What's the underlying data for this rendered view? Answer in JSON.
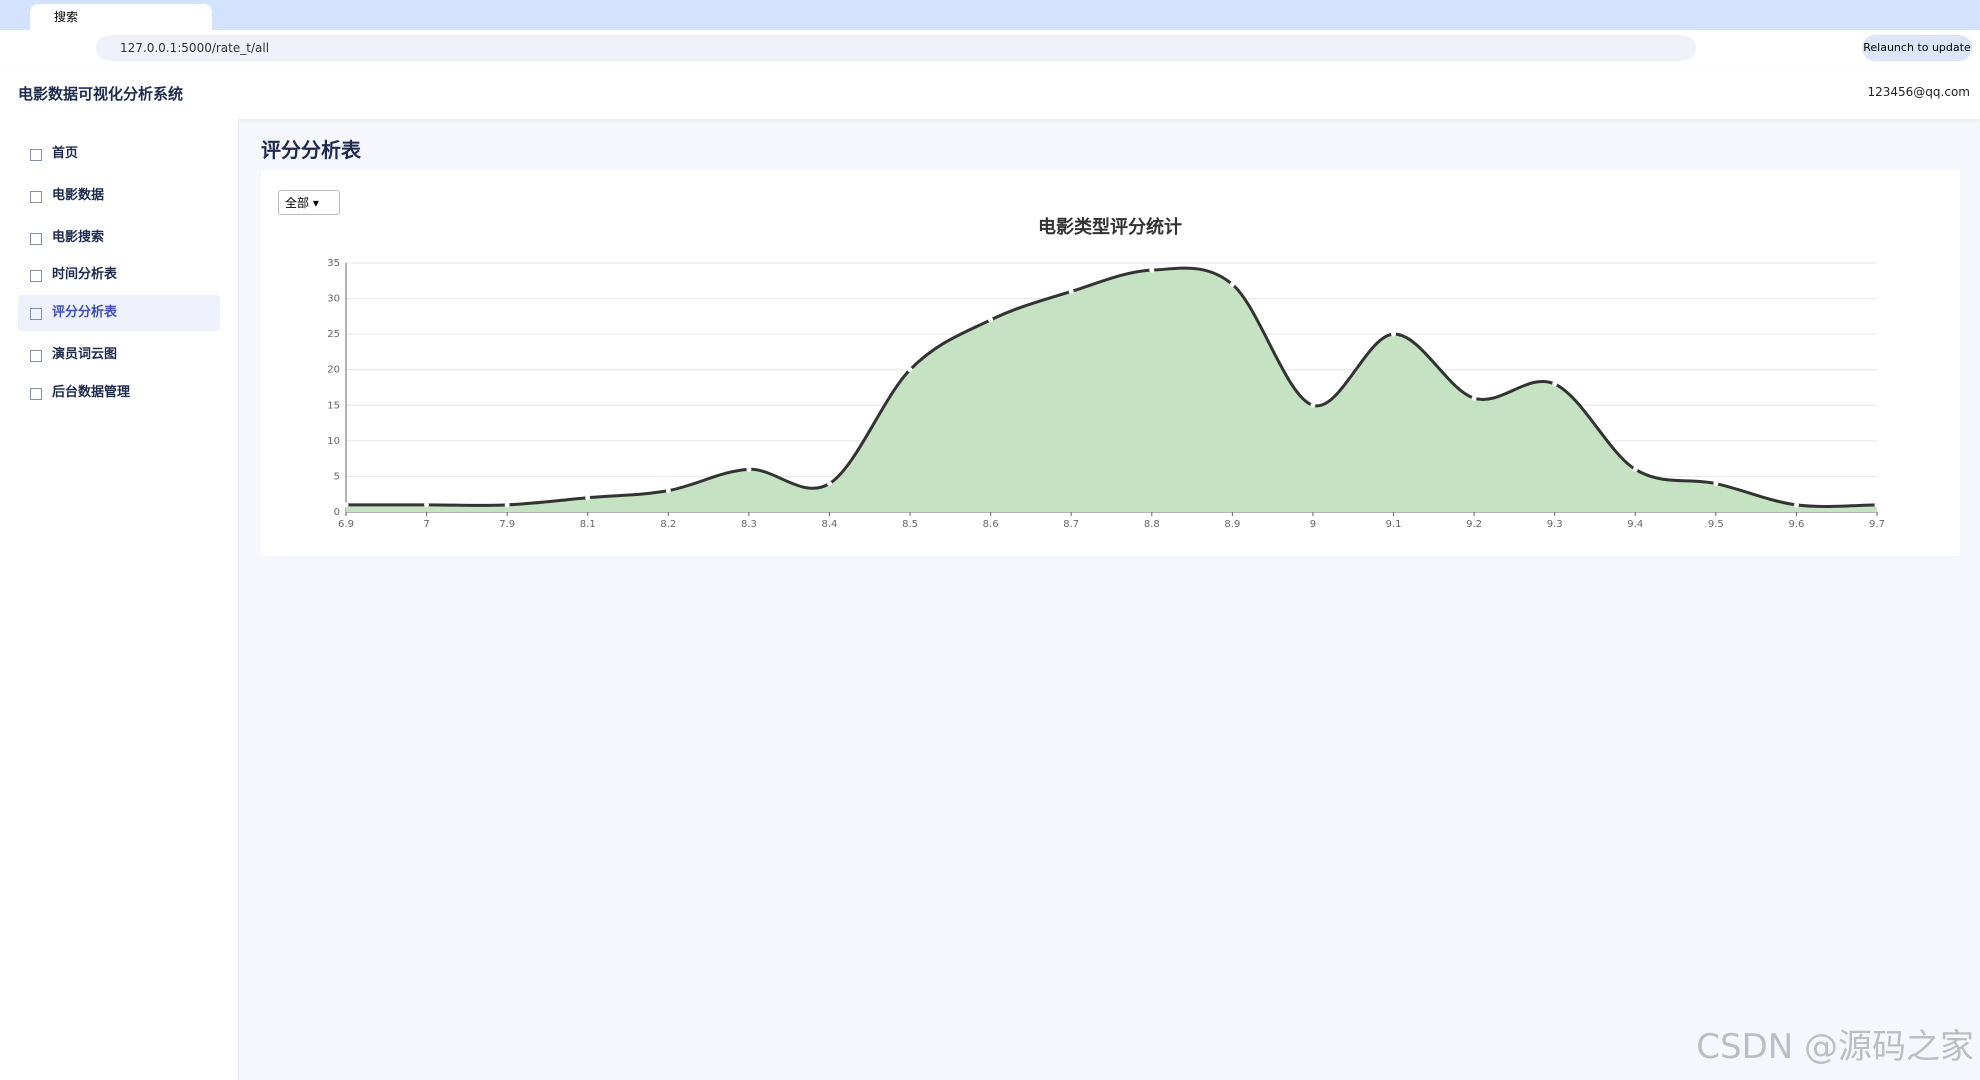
{
  "browser": {
    "tab_title": "搜索",
    "url": "127.0.0.1:5000/rate_t/all",
    "update_button": "Relaunch to update"
  },
  "header": {
    "title": "电影数据可视化分析系统",
    "user": "123456@qq.com"
  },
  "sidebar": {
    "items": [
      "首页",
      "电影数据",
      "电影搜索",
      "时间分析表",
      "评分分析表",
      "演员词云图",
      "后台数据管理"
    ],
    "active": 4
  },
  "page": {
    "title": "评分分析表",
    "filter": "全部"
  },
  "chart_data": {
    "type": "area",
    "title": "电影类型评分统计",
    "categories": [
      "6.9",
      "7",
      "7.9",
      "8.1",
      "8.2",
      "8.3",
      "8.4",
      "8.5",
      "8.6",
      "8.7",
      "8.8",
      "8.9",
      "9",
      "9.1",
      "9.2",
      "9.3",
      "9.4",
      "9.5",
      "9.6",
      "9.7"
    ],
    "values": [
      1,
      1,
      1,
      2,
      3,
      6,
      4,
      20,
      27,
      31,
      34,
      32,
      15,
      25,
      16,
      18,
      6,
      4,
      1,
      1
    ],
    "color": "#333333",
    "area_color": "#c5e3c2",
    "smooth": true,
    "ylim": [
      0,
      35
    ],
    "yticks": [
      0,
      5,
      10,
      15,
      20,
      25,
      30,
      35
    ],
    "grid": true
  },
  "watermark": "CSDN @源码之家"
}
